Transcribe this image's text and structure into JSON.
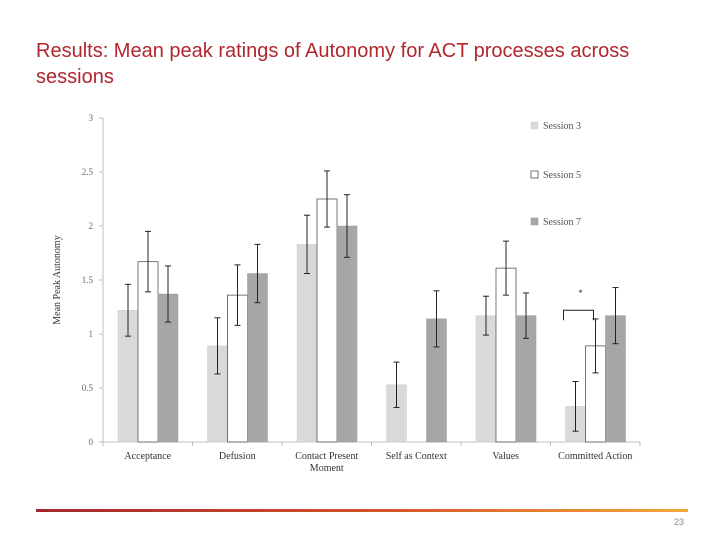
{
  "slide": {
    "title": "Results:  Mean peak ratings of Autonomy for ACT processes across sessions",
    "page_number": "23"
  },
  "colors": {
    "title": "#b0272e",
    "session3": "#d9d9d9",
    "session5": "#ffffff",
    "session7": "#a6a6a6"
  },
  "chart_data": {
    "type": "bar",
    "categories": [
      "Acceptance",
      "Defusion",
      "Contact Present Moment",
      "Self as Context",
      "Values",
      "Committed Action"
    ],
    "series": [
      {
        "name": "Session 3",
        "values": [
          1.22,
          0.89,
          1.83,
          0.53,
          1.17,
          0.33
        ],
        "error": [
          0.24,
          0.26,
          0.27,
          0.21,
          0.18,
          0.23
        ]
      },
      {
        "name": "Session 5",
        "values": [
          1.67,
          1.36,
          2.25,
          null,
          1.61,
          0.89
        ],
        "error": [
          0.28,
          0.28,
          0.26,
          null,
          0.25,
          0.25
        ]
      },
      {
        "name": "Session 7",
        "values": [
          1.37,
          1.56,
          2.0,
          1.14,
          1.17,
          1.17
        ],
        "error": [
          0.26,
          0.27,
          0.29,
          0.26,
          0.21,
          0.26
        ]
      }
    ],
    "ylabel": "Mean Peak Autonomy",
    "ylim": [
      0,
      3
    ],
    "yticks": [
      "0",
      "0.5",
      "1",
      "1.5",
      "2",
      "2.5",
      "3"
    ],
    "legend_position": "right",
    "annotation": "*"
  }
}
